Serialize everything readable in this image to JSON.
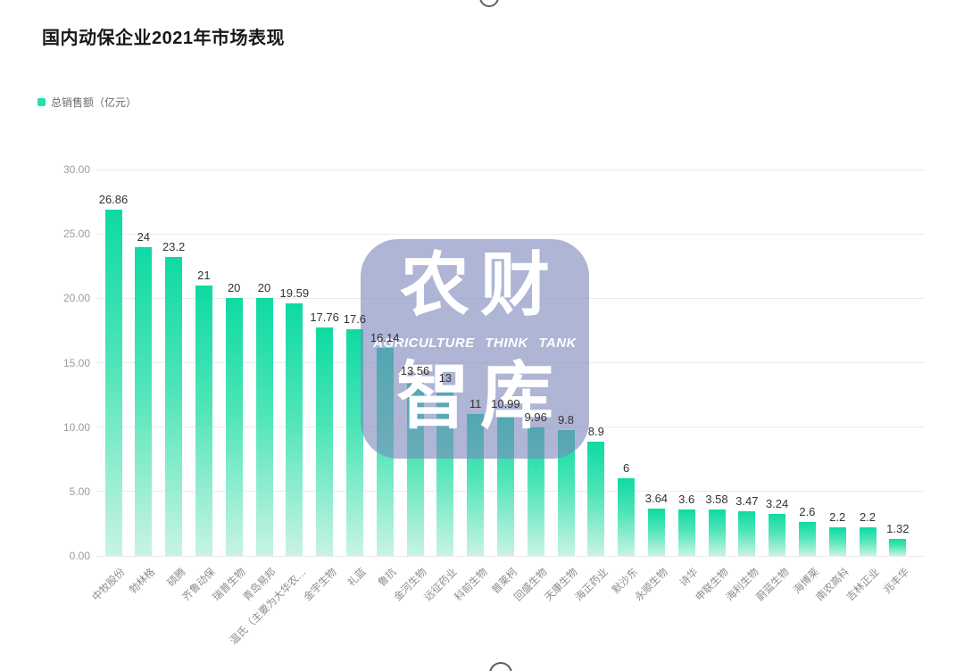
{
  "title": {
    "text": "国内动保企业2021年市场表现"
  },
  "legend": {
    "label": "总销售额（亿元）",
    "swatch_color": "#22dfab"
  },
  "watermark": {
    "line1": "农财",
    "line2": "AGRICULTURE THINK TANK",
    "line3": "智库",
    "fill_color": "#7c88bb"
  },
  "chart_data": {
    "type": "bar",
    "title": "国内动保企业2021年市场表现",
    "legend_entries": [
      "总销售额（亿元）"
    ],
    "legend_position": "top-left",
    "ylabel": "总销售额（亿元）",
    "xlabel": "",
    "ylim": [
      0,
      30
    ],
    "ytick_values": [
      0,
      5,
      10,
      15,
      20,
      25,
      30
    ],
    "ytick_labels": [
      "0.00",
      "5.00",
      "10.00",
      "15.00",
      "20.00",
      "25.00",
      "30.00"
    ],
    "grid": true,
    "x_label_rotation": 45,
    "bar_color_top": "#0edaa3",
    "bar_color_bottom": "#c9f3e5",
    "value_label_color": "#333333",
    "axis_tick_color": "#9b9b9b",
    "categories": [
      "中牧股份",
      "勃林格",
      "硕腾",
      "齐鲁动保",
      "瑞普生物",
      "青岛易邦",
      "温氏（主要为大华农…",
      "金宇生物",
      "礼蓝",
      "鲁抗",
      "金河生物",
      "远征药业",
      "科前生物",
      "普莱柯",
      "回盛生物",
      "天康生物",
      "海正药业",
      "默沙东",
      "永顺生物",
      "诗华",
      "申联生物",
      "海利生物",
      "蔚蓝生物",
      "海博莱",
      "南农高科",
      "吉林正业",
      "兆丰华"
    ],
    "values": [
      26.86,
      24,
      23.2,
      21,
      20,
      20,
      19.59,
      17.76,
      17.6,
      16.14,
      13.56,
      13,
      11,
      10.99,
      9.96,
      9.8,
      8.9,
      6,
      3.64,
      3.6,
      3.58,
      3.47,
      3.24,
      2.6,
      2.2,
      2.2,
      1.32
    ],
    "value_labels": [
      "26.86",
      "24",
      "23.2",
      "21",
      "20",
      "20",
      "19.59",
      "17.76",
      "17.6",
      "16.14",
      "13.56",
      "13",
      "11",
      "10.99",
      "9.96",
      "9.8",
      "8.9",
      "6",
      "3.64",
      "3.6",
      "3.58",
      "3.47",
      "3.24",
      "2.6",
      "2.2",
      "2.2",
      "1.32"
    ]
  }
}
